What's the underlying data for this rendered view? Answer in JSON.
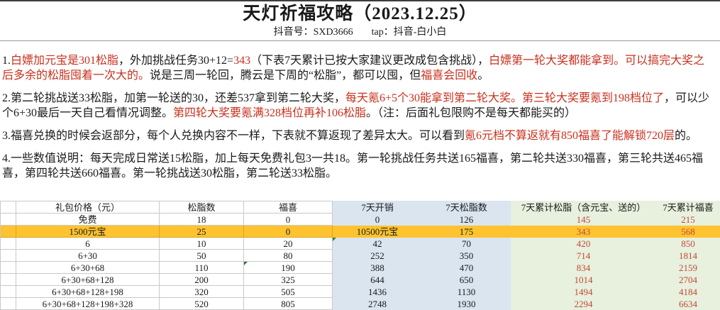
{
  "header": {
    "title": "天灯祈福攻略（2023.12.25）",
    "subtitle_left": "抖音号：SXD3666",
    "subtitle_right": "tap：抖音-白小白"
  },
  "colors": {
    "paragraph_red": "#c8301e",
    "table_red_text": "#c04a38",
    "highlight_row_yellow": "#ffc330",
    "blue_columns": "#dae5f0",
    "green_columns": "#e8f0de"
  },
  "paragraphs": [
    {
      "segments": [
        {
          "t": "1.",
          "c": "black"
        },
        {
          "t": "白嫖加元宝是301松脂",
          "c": "red"
        },
        {
          "t": "，外加挑战任务30+12=",
          "c": "black"
        },
        {
          "t": "343",
          "c": "red"
        },
        {
          "t": "（下表7天累计已按大家建议更改成包含挑战），",
          "c": "black"
        },
        {
          "t": "白嫖第一轮大奖都能拿到。可以搞完大奖之后多余的松脂囤着一次大的。",
          "c": "red"
        },
        {
          "t": "说是三周一轮回，腾云是下周的“松脂”，都可以囤，但",
          "c": "black"
        },
        {
          "t": "福喜会回收",
          "c": "red"
        },
        {
          "t": "。",
          "c": "black"
        }
      ]
    },
    {
      "segments": [
        {
          "t": "2.第二轮挑战送33松脂，加第一轮送的30，还差537拿到第二轮大奖，",
          "c": "black"
        },
        {
          "t": "每天氪6+5个30能拿到第二轮大奖。第三轮大奖要氪到198档位了",
          "c": "red"
        },
        {
          "t": "，可以少个6+30最后一天自己看情况调整。",
          "c": "black"
        },
        {
          "t": "第四轮大奖要氪满328档位再补106松脂",
          "c": "red"
        },
        {
          "t": "。（注：后面礼包限购不是每天都能买的）",
          "c": "black"
        }
      ]
    },
    {
      "segments": [
        {
          "t": "3.福喜兑换的时候会返部分，每个人兑换内容不一样，下表就不算返现了差异太大。可以看到",
          "c": "black"
        },
        {
          "t": "氪6元档不算返就有850福喜了能解锁720层",
          "c": "red"
        },
        {
          "t": "的。",
          "c": "black"
        }
      ]
    },
    {
      "segments": [
        {
          "t": "4.一些数值说明：每天完成日常送15松脂，加上每天免费礼包3一共18。第一轮挑战任务共送165福喜，第二轮共送330福喜，第三轮共送465福喜，第四轮共送660福喜。第一轮挑战送30松脂，第二轮送33松脂。",
          "c": "black"
        }
      ]
    }
  ],
  "table": {
    "columns": [
      {
        "label": "",
        "type": "gutter"
      },
      {
        "label": "礼包价格（元）",
        "type": "white"
      },
      {
        "label": "松脂数",
        "type": "white"
      },
      {
        "label": "福喜",
        "type": "white"
      },
      {
        "label": "7天开销",
        "type": "blue"
      },
      {
        "label": "7天松脂数",
        "type": "blue"
      },
      {
        "label": "7天累计松脂（含元宝、送的）",
        "type": "green"
      },
      {
        "label": "7天累计福喜",
        "type": "green"
      }
    ],
    "red_text_cell_indexes": [
      5,
      6
    ],
    "rows": [
      {
        "cells": [
          "免费",
          "18",
          "0",
          "0",
          "126",
          "145",
          "215"
        ],
        "highlight": false
      },
      {
        "cells": [
          "1500元宝",
          "25",
          "0",
          "10500元宝",
          "175",
          "343",
          "568"
        ],
        "highlight": true
      },
      {
        "cells": [
          "6",
          "10",
          "20",
          "42",
          "70",
          "420",
          "850"
        ],
        "highlight": false
      },
      {
        "cells": [
          "6+30",
          "50",
          "80",
          "252",
          "350",
          "714",
          "1814"
        ],
        "highlight": false
      },
      {
        "cells": [
          "6+30+68",
          "110",
          "190",
          "388",
          "470",
          "834",
          "2159"
        ],
        "highlight": false
      },
      {
        "cells": [
          "6+30+68+128",
          "200",
          "325",
          "644",
          "650",
          "1014",
          "2704"
        ],
        "highlight": false
      },
      {
        "cells": [
          "6+30+68+128+198",
          "320",
          "505",
          "1436",
          "1130",
          "1494",
          "4184"
        ],
        "highlight": false
      },
      {
        "cells": [
          "6+30+68+128+198+328",
          "520",
          "805",
          "2748",
          "1930",
          "2294",
          "6634"
        ],
        "highlight": false
      }
    ],
    "green_triangle_cells": [
      {
        "row": 2,
        "cell": 3
      },
      {
        "row": 4,
        "cell": 2
      }
    ]
  }
}
